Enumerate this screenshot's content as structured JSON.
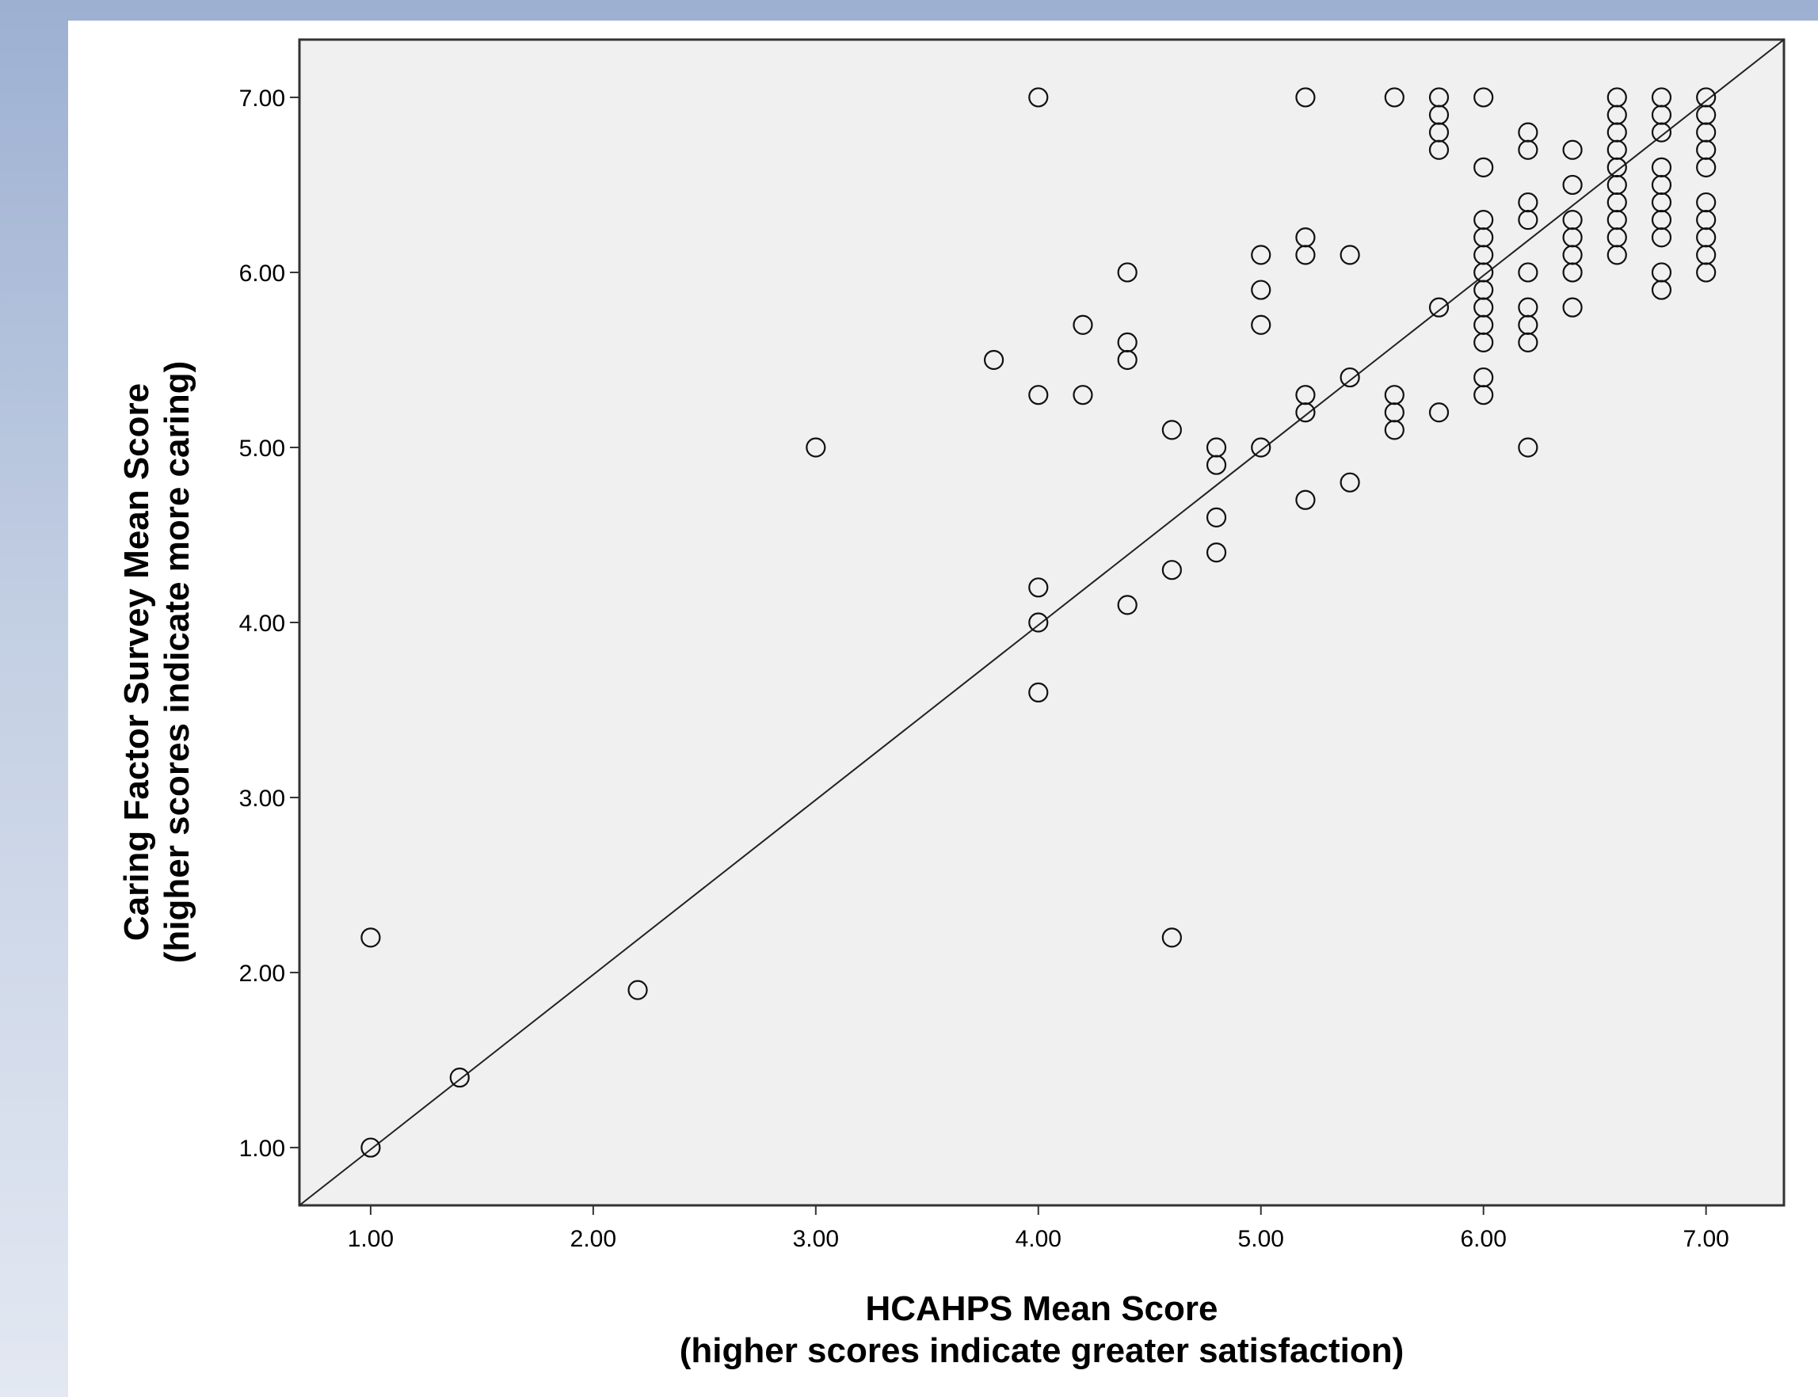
{
  "chart_data": {
    "type": "scatter",
    "xlabel": "HCAHPS Mean Score",
    "xlabel_sub": "(higher scores indicate greater satisfaction)",
    "ylabel": "Caring Factor Survey Mean Score",
    "ylabel_sub": "(higher scores indicate more caring)",
    "xlim": [
      0.68,
      7.35
    ],
    "ylim": [
      0.67,
      7.33
    ],
    "xticks": [
      "1.00",
      "2.00",
      "3.00",
      "4.00",
      "5.00",
      "6.00",
      "7.00"
    ],
    "yticks": [
      "1.00",
      "2.00",
      "3.00",
      "4.00",
      "5.00",
      "6.00",
      "7.00"
    ],
    "grid": false,
    "reference_line": {
      "from": [
        0.68,
        0.67
      ],
      "to": [
        7.35,
        7.33
      ]
    },
    "marker": "open-circle",
    "points": [
      [
        1.0,
        1.0
      ],
      [
        1.0,
        2.2
      ],
      [
        1.4,
        1.4
      ],
      [
        2.2,
        1.9
      ],
      [
        3.0,
        5.0
      ],
      [
        3.8,
        5.5
      ],
      [
        4.0,
        7.0
      ],
      [
        4.0,
        5.3
      ],
      [
        4.0,
        4.2
      ],
      [
        4.0,
        4.0
      ],
      [
        4.0,
        3.6
      ],
      [
        4.2,
        5.7
      ],
      [
        4.2,
        5.3
      ],
      [
        4.4,
        6.0
      ],
      [
        4.4,
        5.6
      ],
      [
        4.4,
        5.5
      ],
      [
        4.4,
        4.1
      ],
      [
        4.6,
        5.1
      ],
      [
        4.6,
        4.3
      ],
      [
        4.6,
        2.2
      ],
      [
        4.8,
        5.0
      ],
      [
        4.8,
        4.9
      ],
      [
        4.8,
        4.6
      ],
      [
        4.8,
        4.4
      ],
      [
        5.0,
        6.1
      ],
      [
        5.0,
        5.9
      ],
      [
        5.0,
        5.7
      ],
      [
        5.0,
        5.0
      ],
      [
        5.2,
        7.0
      ],
      [
        5.2,
        6.2
      ],
      [
        5.2,
        6.1
      ],
      [
        5.2,
        5.3
      ],
      [
        5.2,
        5.2
      ],
      [
        5.2,
        4.7
      ],
      [
        5.4,
        6.1
      ],
      [
        5.4,
        5.4
      ],
      [
        5.4,
        4.8
      ],
      [
        5.6,
        7.0
      ],
      [
        5.6,
        5.3
      ],
      [
        5.6,
        5.2
      ],
      [
        5.6,
        5.1
      ],
      [
        5.8,
        7.0
      ],
      [
        5.8,
        6.9
      ],
      [
        5.8,
        6.8
      ],
      [
        5.8,
        6.7
      ],
      [
        5.8,
        5.8
      ],
      [
        5.8,
        5.2
      ],
      [
        6.0,
        7.0
      ],
      [
        6.0,
        6.6
      ],
      [
        6.0,
        6.3
      ],
      [
        6.0,
        6.2
      ],
      [
        6.0,
        6.1
      ],
      [
        6.0,
        6.0
      ],
      [
        6.0,
        5.9
      ],
      [
        6.0,
        5.8
      ],
      [
        6.0,
        5.7
      ],
      [
        6.0,
        5.6
      ],
      [
        6.0,
        5.4
      ],
      [
        6.0,
        5.3
      ],
      [
        6.2,
        6.8
      ],
      [
        6.2,
        6.7
      ],
      [
        6.2,
        6.4
      ],
      [
        6.2,
        6.3
      ],
      [
        6.2,
        6.0
      ],
      [
        6.2,
        5.8
      ],
      [
        6.2,
        5.7
      ],
      [
        6.2,
        5.6
      ],
      [
        6.2,
        5.0
      ],
      [
        6.4,
        6.7
      ],
      [
        6.4,
        6.5
      ],
      [
        6.4,
        6.3
      ],
      [
        6.4,
        6.2
      ],
      [
        6.4,
        6.1
      ],
      [
        6.4,
        6.0
      ],
      [
        6.4,
        5.8
      ],
      [
        6.6,
        7.0
      ],
      [
        6.6,
        6.9
      ],
      [
        6.6,
        6.8
      ],
      [
        6.6,
        6.7
      ],
      [
        6.6,
        6.6
      ],
      [
        6.6,
        6.5
      ],
      [
        6.6,
        6.4
      ],
      [
        6.6,
        6.3
      ],
      [
        6.6,
        6.2
      ],
      [
        6.6,
        6.1
      ],
      [
        6.8,
        7.0
      ],
      [
        6.8,
        6.9
      ],
      [
        6.8,
        6.8
      ],
      [
        6.8,
        6.6
      ],
      [
        6.8,
        6.5
      ],
      [
        6.8,
        6.4
      ],
      [
        6.8,
        6.3
      ],
      [
        6.8,
        6.2
      ],
      [
        6.8,
        6.0
      ],
      [
        6.8,
        5.9
      ],
      [
        7.0,
        7.0
      ],
      [
        7.0,
        6.9
      ],
      [
        7.0,
        6.8
      ],
      [
        7.0,
        6.7
      ],
      [
        7.0,
        6.6
      ],
      [
        7.0,
        6.4
      ],
      [
        7.0,
        6.3
      ],
      [
        7.0,
        6.2
      ],
      [
        7.0,
        6.1
      ],
      [
        7.0,
        6.0
      ]
    ]
  }
}
